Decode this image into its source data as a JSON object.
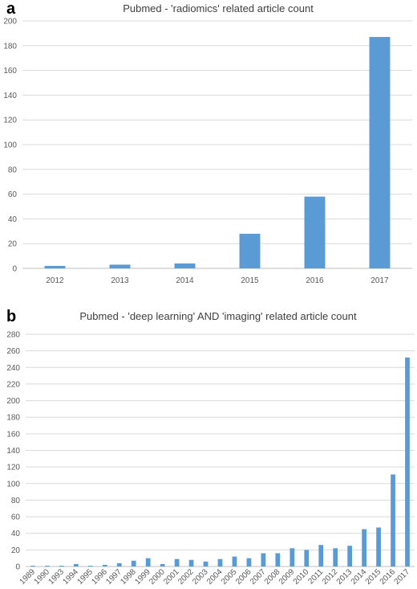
{
  "chart_data": [
    {
      "type": "bar",
      "panel_label": "a",
      "title": "Pubmed - 'radiomics' related article count",
      "categories": [
        "2012",
        "2013",
        "2014",
        "2015",
        "2016",
        "2017"
      ],
      "values": [
        2,
        3,
        4,
        28,
        58,
        187
      ],
      "ylim": [
        0,
        200
      ],
      "yticks": [
        0,
        20,
        40,
        60,
        80,
        100,
        120,
        140,
        160,
        180,
        200
      ],
      "grid": true,
      "color": "#5b9bd5"
    },
    {
      "type": "bar",
      "panel_label": "b",
      "title": "Pubmed - 'deep learning' AND 'imaging' related article count",
      "categories": [
        "1989",
        "1990",
        "1993",
        "1994",
        "1995",
        "1996",
        "1997",
        "1998",
        "1999",
        "2000",
        "2001",
        "2002",
        "2003",
        "2004",
        "2005",
        "2006",
        "2007",
        "2008",
        "2009",
        "2010",
        "2011",
        "2012",
        "2013",
        "2014",
        "2015",
        "2016",
        "2017"
      ],
      "values": [
        1,
        1,
        1,
        3,
        1,
        2,
        4,
        7,
        10,
        3,
        9,
        8,
        6,
        9,
        12,
        10,
        16,
        16,
        22,
        20,
        26,
        22,
        25,
        45,
        47,
        111,
        252
      ],
      "ylim": [
        0,
        280
      ],
      "yticks": [
        0,
        20,
        40,
        60,
        80,
        100,
        120,
        140,
        160,
        180,
        200,
        220,
        240,
        260,
        280
      ],
      "grid": true,
      "color": "#5b9bd5"
    }
  ]
}
